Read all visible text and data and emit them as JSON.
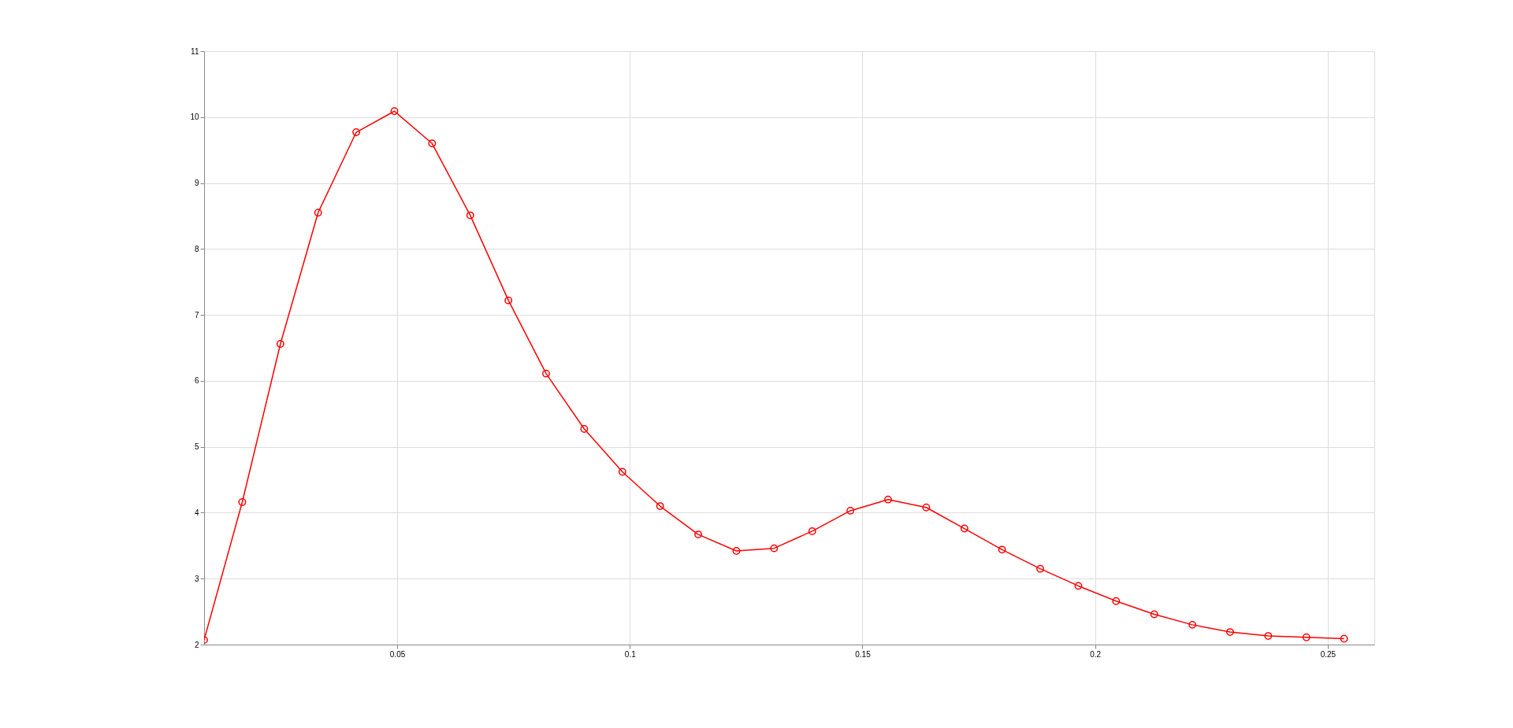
{
  "chart_data": {
    "type": "line",
    "x": [
      0.0085,
      0.0167,
      0.0249,
      0.033,
      0.0412,
      0.0494,
      0.0575,
      0.0657,
      0.0739,
      0.082,
      0.0902,
      0.0984,
      0.1065,
      0.1147,
      0.1229,
      0.131,
      0.1392,
      0.1474,
      0.1555,
      0.1637,
      0.1719,
      0.18,
      0.1882,
      0.1964,
      0.2045,
      0.2127,
      0.2209,
      0.229,
      0.2372,
      0.2454,
      0.2535
    ],
    "series": [
      {
        "color": "#ff0000",
        "values": [
          2.07,
          4.16,
          6.56,
          8.55,
          9.77,
          10.09,
          9.6,
          8.51,
          7.22,
          6.11,
          5.27,
          4.62,
          4.1,
          3.67,
          3.42,
          3.46,
          3.72,
          4.03,
          4.2,
          4.08,
          3.76,
          3.44,
          3.15,
          2.89,
          2.66,
          2.46,
          2.3,
          2.19,
          2.13,
          2.11,
          2.09
        ]
      }
    ],
    "xlim": [
      0.0085,
      0.26
    ],
    "xticks": [
      0.05,
      0.1,
      0.15,
      0.2,
      0.25
    ],
    "ylim": [
      2,
      11
    ],
    "yticks": [
      2,
      3,
      4,
      5,
      6,
      7,
      8,
      9,
      10,
      11
    ],
    "grid": true,
    "marker": "circle",
    "line_style": "solid"
  }
}
